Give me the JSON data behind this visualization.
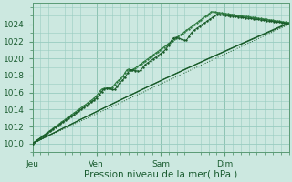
{
  "title": "",
  "xlabel": "Pression niveau de la mer( hPa )",
  "ylabel": "",
  "background_color": "#cce8e0",
  "plot_bg_color": "#cce8e0",
  "grid_color": "#99ccc0",
  "line_color_dark": "#1a5c2a",
  "line_color_mid": "#2d7a40",
  "ylim": [
    1009.0,
    1026.5
  ],
  "x_days": [
    "Jeu",
    "Ven",
    "Sam",
    "Dim"
  ],
  "x_ticks_pos": [
    0,
    0.25,
    0.5,
    0.75
  ],
  "x_max": 1.0,
  "yticks": [
    1010,
    1012,
    1014,
    1016,
    1018,
    1020,
    1022,
    1024
  ],
  "tick_label_fontsize": 6.5,
  "xlabel_fontsize": 7.5
}
